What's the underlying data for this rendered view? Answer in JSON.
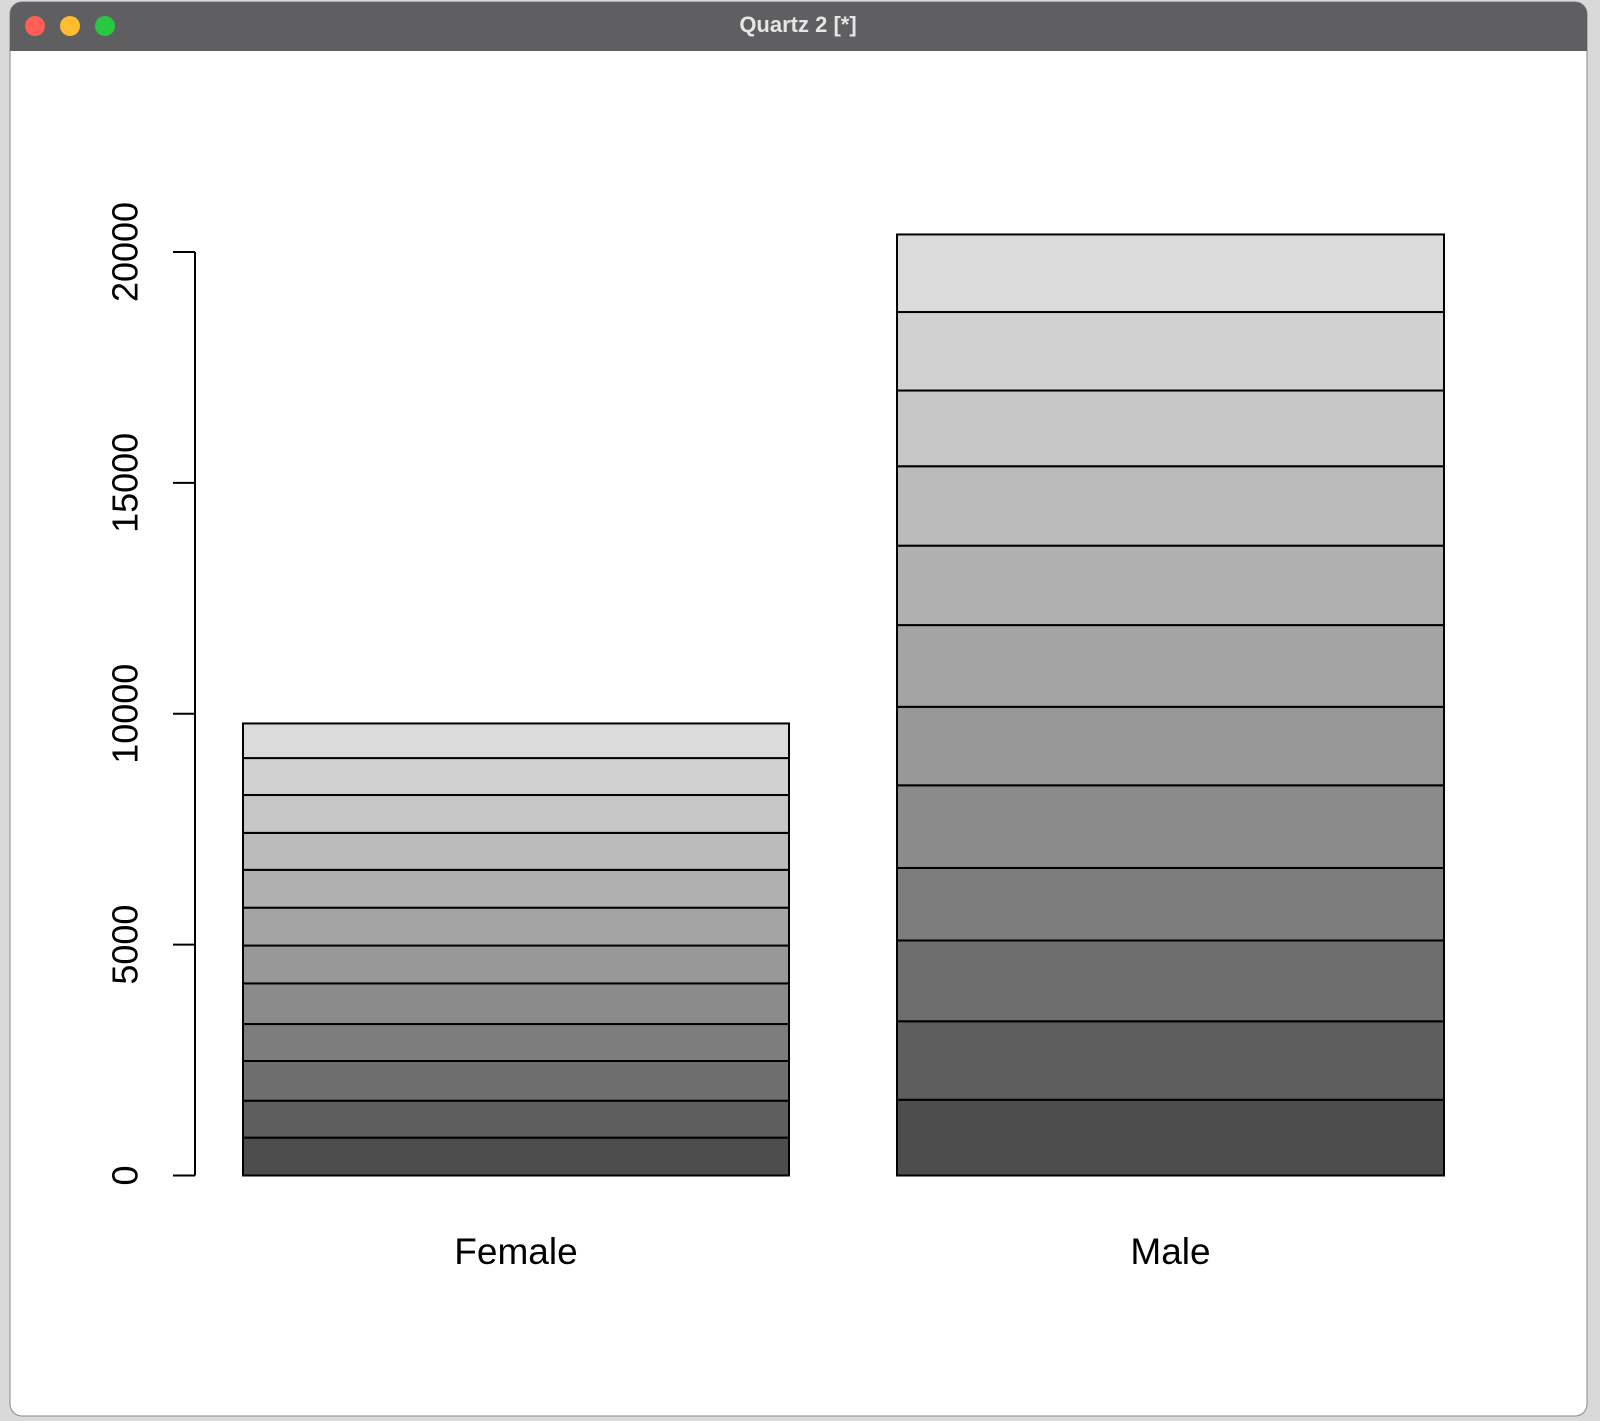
{
  "window_title": "Quartz 2 [*]",
  "chart_data": {
    "type": "stacked-bar",
    "categories": [
      "Female",
      "Male"
    ],
    "series": [
      {
        "color": "#4d4d4d",
        "values": [
          820,
          1640
        ]
      },
      {
        "color": "#5e5e5e",
        "values": [
          800,
          1700
        ]
      },
      {
        "color": "#6e6e6e",
        "values": [
          860,
          1750
        ]
      },
      {
        "color": "#7d7d7d",
        "values": [
          800,
          1570
        ]
      },
      {
        "color": "#8b8b8b",
        "values": [
          880,
          1790
        ]
      },
      {
        "color": "#989898",
        "values": [
          820,
          1700
        ]
      },
      {
        "color": "#a4a4a4",
        "values": [
          820,
          1770
        ]
      },
      {
        "color": "#b0b0b0",
        "values": [
          820,
          1720
        ]
      },
      {
        "color": "#bbbbbb",
        "values": [
          800,
          1720
        ]
      },
      {
        "color": "#c6c6c6",
        "values": [
          820,
          1640
        ]
      },
      {
        "color": "#d1d1d1",
        "values": [
          800,
          1700
        ]
      },
      {
        "color": "#dbdbdb",
        "values": [
          750,
          1680
        ]
      }
    ],
    "ylim": [
      0,
      20000
    ],
    "yticks": [
      0,
      5000,
      10000,
      15000,
      20000
    ]
  }
}
